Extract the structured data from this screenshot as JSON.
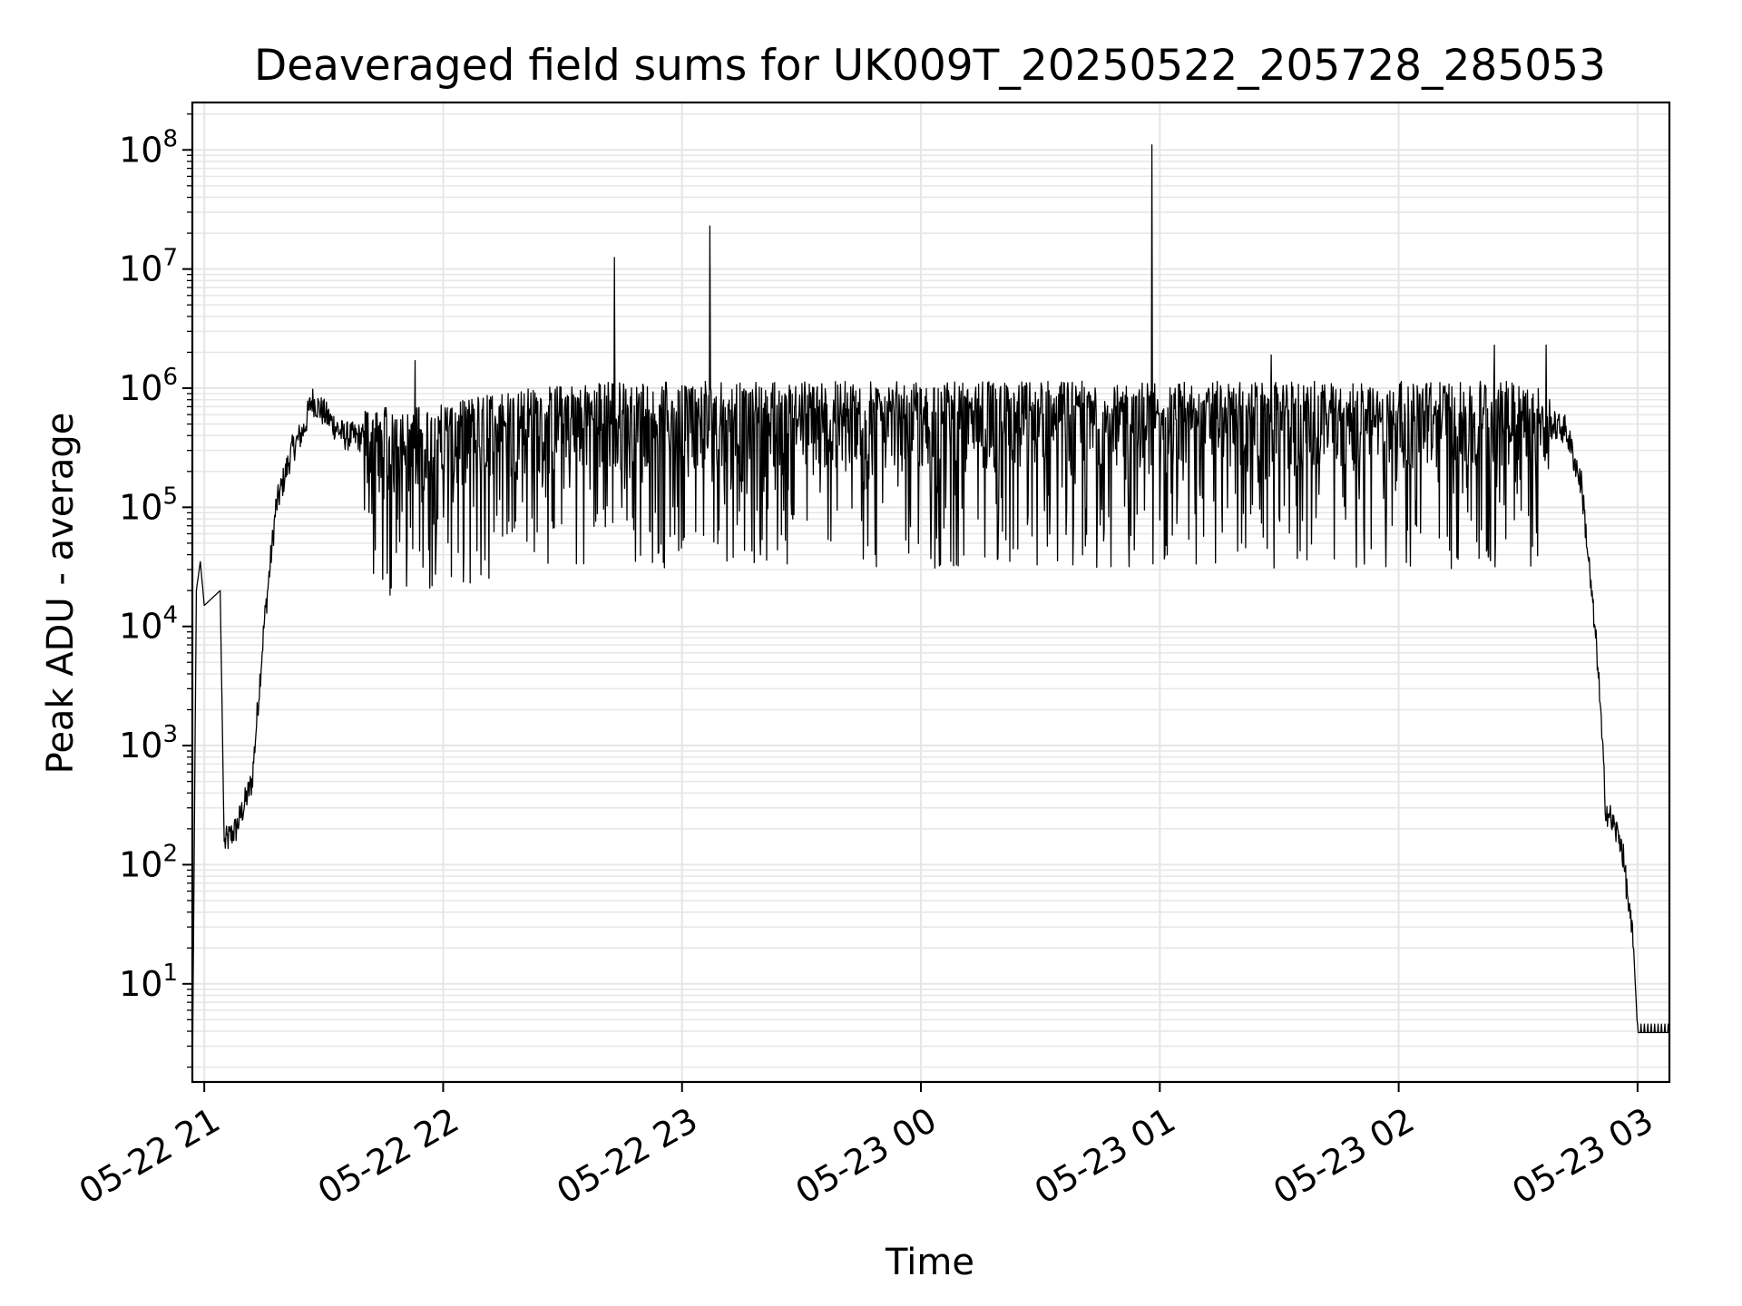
{
  "chart_data": {
    "type": "line",
    "title": "Deaveraged field sums for UK009T_20250522_205728_285053",
    "xlabel": "Time",
    "ylabel": "Peak ADU - average",
    "yscale": "log",
    "ylim": [
      1.5,
      250000000
    ],
    "xlim": [
      "2025-05-22 20:57",
      "2025-05-23 03:08"
    ],
    "x_ticks": [
      "05-22 21",
      "05-22 22",
      "05-22 23",
      "05-23 00",
      "05-23 01",
      "05-23 02",
      "05-23 03"
    ],
    "y_ticks": [
      {
        "base": "10",
        "exp": "1",
        "value": 10
      },
      {
        "base": "10",
        "exp": "2",
        "value": 100
      },
      {
        "base": "10",
        "exp": "3",
        "value": 1000
      },
      {
        "base": "10",
        "exp": "4",
        "value": 10000
      },
      {
        "base": "10",
        "exp": "5",
        "value": 100000
      },
      {
        "base": "10",
        "exp": "6",
        "value": 1000000
      },
      {
        "base": "10",
        "exp": "7",
        "value": 10000000
      },
      {
        "base": "10",
        "exp": "8",
        "value": 100000000
      }
    ],
    "grid": true,
    "line_color": "#000000",
    "grid_color": "#e6e6e6",
    "series": [
      {
        "profile": [
          [
            "2025-05-22 20:57",
            1.5
          ],
          [
            "2025-05-22 20:58",
            20000
          ],
          [
            "2025-05-22 20:59",
            35000
          ],
          [
            "2025-05-22 21:00",
            15000
          ],
          [
            "2025-05-22 21:04",
            20000
          ],
          [
            "2025-05-22 21:05",
            150
          ],
          [
            "2025-05-22 21:08",
            200
          ],
          [
            "2025-05-22 21:12",
            500
          ],
          [
            "2025-05-22 21:15",
            10000
          ],
          [
            "2025-05-22 21:18",
            100000
          ],
          [
            "2025-05-22 21:22",
            300000
          ],
          [
            "2025-05-22 21:25",
            450000
          ],
          [
            "2025-05-22 21:27",
            800000
          ],
          [
            "2025-05-22 21:35",
            400000
          ],
          [
            "2025-05-22 21:50",
            350000
          ],
          [
            "2025-05-22 22:15",
            500000
          ],
          [
            "2025-05-22 22:40",
            600000
          ],
          [
            "2025-05-23 02:30",
            600000
          ],
          [
            "2025-05-23 02:42",
            450000
          ],
          [
            "2025-05-23 02:46",
            150000
          ],
          [
            "2025-05-23 02:50",
            5000
          ],
          [
            "2025-05-23 02:52",
            300
          ],
          [
            "2025-05-23 02:56",
            150
          ],
          [
            "2025-05-23 02:59",
            20
          ],
          [
            "2025-05-23 03:00",
            4
          ],
          [
            "2025-05-23 03:08",
            4
          ]
        ],
        "spikes": [
          [
            "2025-05-22 21:53",
            1700000
          ],
          [
            "2025-05-22 22:43",
            12500000
          ],
          [
            "2025-05-22 23:07",
            23000000
          ],
          [
            "2025-05-23 00:58",
            110000000
          ],
          [
            "2025-05-23 01:28",
            1900000
          ],
          [
            "2025-05-23 02:24",
            2300000
          ],
          [
            "2025-05-23 02:37",
            2300000
          ]
        ]
      }
    ]
  }
}
